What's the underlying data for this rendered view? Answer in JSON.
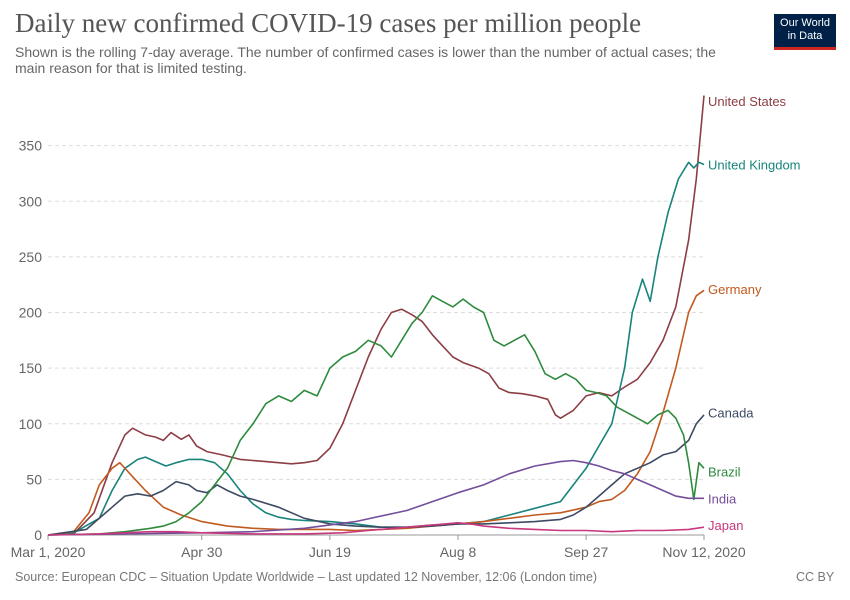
{
  "header": {
    "title": "Daily new confirmed COVID-19 cases per million people",
    "subtitle": "Shown is the rolling 7-day average. The number of confirmed cases is lower than the number of actual cases; the main reason for that is limited testing.",
    "logo_line1": "Our World",
    "logo_line2": "in Data"
  },
  "footer": {
    "source": "Source: European CDC – Situation Update Worldwide – Last updated 12 November, 12:06 (London time)",
    "license": "CC BY"
  },
  "chart_data": {
    "type": "line",
    "title": "Daily new confirmed COVID-19 cases per million people",
    "xlabel": "",
    "ylabel": "",
    "x_range": [
      0,
      256
    ],
    "ylim": [
      0,
      400
    ],
    "y_ticks": [
      0,
      50,
      100,
      150,
      200,
      250,
      300,
      350
    ],
    "x_ticks": [
      {
        "day": 0,
        "label": "Mar 1, 2020"
      },
      {
        "day": 60,
        "label": "Apr 30"
      },
      {
        "day": 110,
        "label": "Jun 19"
      },
      {
        "day": 160,
        "label": "Aug 8"
      },
      {
        "day": 210,
        "label": "Sep 27"
      },
      {
        "day": 256,
        "label": "Nov 12, 2020"
      }
    ],
    "grid": true,
    "series": [
      {
        "name": "United States",
        "color": "#8c3e44",
        "points": [
          [
            0,
            0
          ],
          [
            10,
            1
          ],
          [
            18,
            20
          ],
          [
            25,
            65
          ],
          [
            30,
            90
          ],
          [
            33,
            96
          ],
          [
            38,
            90
          ],
          [
            42,
            88
          ],
          [
            45,
            85
          ],
          [
            48,
            92
          ],
          [
            52,
            86
          ],
          [
            55,
            90
          ],
          [
            58,
            80
          ],
          [
            62,
            75
          ],
          [
            68,
            72
          ],
          [
            75,
            68
          ],
          [
            80,
            67
          ],
          [
            85,
            66
          ],
          [
            90,
            65
          ],
          [
            95,
            64
          ],
          [
            100,
            65
          ],
          [
            105,
            67
          ],
          [
            110,
            78
          ],
          [
            115,
            100
          ],
          [
            120,
            130
          ],
          [
            125,
            160
          ],
          [
            130,
            185
          ],
          [
            134,
            200
          ],
          [
            138,
            203
          ],
          [
            142,
            198
          ],
          [
            146,
            192
          ],
          [
            150,
            180
          ],
          [
            154,
            170
          ],
          [
            158,
            160
          ],
          [
            162,
            155
          ],
          [
            168,
            150
          ],
          [
            172,
            145
          ],
          [
            176,
            132
          ],
          [
            180,
            128
          ],
          [
            185,
            127
          ],
          [
            190,
            125
          ],
          [
            195,
            122
          ],
          [
            198,
            108
          ],
          [
            200,
            105
          ],
          [
            205,
            112
          ],
          [
            210,
            125
          ],
          [
            215,
            128
          ],
          [
            220,
            125
          ],
          [
            225,
            133
          ],
          [
            230,
            140
          ],
          [
            235,
            155
          ],
          [
            240,
            175
          ],
          [
            245,
            205
          ],
          [
            250,
            265
          ],
          [
            253,
            320
          ],
          [
            256,
            395
          ]
        ]
      },
      {
        "name": "United Kingdom",
        "color": "#18847c",
        "points": [
          [
            0,
            0
          ],
          [
            10,
            2
          ],
          [
            20,
            15
          ],
          [
            25,
            40
          ],
          [
            30,
            60
          ],
          [
            35,
            68
          ],
          [
            38,
            70
          ],
          [
            42,
            66
          ],
          [
            46,
            62
          ],
          [
            50,
            65
          ],
          [
            55,
            68
          ],
          [
            60,
            68
          ],
          [
            65,
            65
          ],
          [
            70,
            55
          ],
          [
            75,
            40
          ],
          [
            80,
            28
          ],
          [
            85,
            20
          ],
          [
            90,
            16
          ],
          [
            95,
            14
          ],
          [
            100,
            13
          ],
          [
            110,
            12
          ],
          [
            120,
            10
          ],
          [
            130,
            7
          ],
          [
            140,
            7
          ],
          [
            150,
            9
          ],
          [
            160,
            10
          ],
          [
            170,
            12
          ],
          [
            180,
            18
          ],
          [
            190,
            24
          ],
          [
            200,
            30
          ],
          [
            210,
            60
          ],
          [
            215,
            80
          ],
          [
            220,
            100
          ],
          [
            225,
            150
          ],
          [
            228,
            200
          ],
          [
            232,
            230
          ],
          [
            235,
            210
          ],
          [
            238,
            250
          ],
          [
            242,
            290
          ],
          [
            246,
            320
          ],
          [
            250,
            335
          ],
          [
            252,
            330
          ],
          [
            254,
            335
          ],
          [
            256,
            333
          ]
        ]
      },
      {
        "name": "Germany",
        "color": "#c15a20",
        "points": [
          [
            0,
            0
          ],
          [
            10,
            3
          ],
          [
            16,
            20
          ],
          [
            20,
            45
          ],
          [
            25,
            60
          ],
          [
            28,
            65
          ],
          [
            32,
            55
          ],
          [
            38,
            40
          ],
          [
            45,
            25
          ],
          [
            52,
            18
          ],
          [
            60,
            12
          ],
          [
            70,
            8
          ],
          [
            80,
            6
          ],
          [
            90,
            5
          ],
          [
            100,
            5
          ],
          [
            110,
            5
          ],
          [
            120,
            4
          ],
          [
            130,
            5
          ],
          [
            140,
            6
          ],
          [
            150,
            8
          ],
          [
            160,
            10
          ],
          [
            170,
            12
          ],
          [
            180,
            15
          ],
          [
            190,
            18
          ],
          [
            200,
            20
          ],
          [
            210,
            25
          ],
          [
            215,
            30
          ],
          [
            220,
            32
          ],
          [
            225,
            40
          ],
          [
            230,
            55
          ],
          [
            235,
            75
          ],
          [
            240,
            110
          ],
          [
            245,
            150
          ],
          [
            250,
            200
          ],
          [
            253,
            215
          ],
          [
            256,
            220
          ]
        ]
      },
      {
        "name": "Canada",
        "color": "#3d4a63",
        "points": [
          [
            0,
            0
          ],
          [
            15,
            5
          ],
          [
            25,
            25
          ],
          [
            30,
            35
          ],
          [
            35,
            37
          ],
          [
            40,
            35
          ],
          [
            45,
            40
          ],
          [
            50,
            48
          ],
          [
            55,
            45
          ],
          [
            58,
            40
          ],
          [
            62,
            38
          ],
          [
            66,
            45
          ],
          [
            70,
            40
          ],
          [
            75,
            35
          ],
          [
            80,
            32
          ],
          [
            90,
            25
          ],
          [
            100,
            15
          ],
          [
            110,
            10
          ],
          [
            120,
            8
          ],
          [
            130,
            7
          ],
          [
            140,
            7
          ],
          [
            150,
            8
          ],
          [
            160,
            10
          ],
          [
            170,
            10
          ],
          [
            180,
            11
          ],
          [
            190,
            12
          ],
          [
            200,
            14
          ],
          [
            205,
            18
          ],
          [
            210,
            25
          ],
          [
            215,
            35
          ],
          [
            220,
            45
          ],
          [
            225,
            55
          ],
          [
            230,
            60
          ],
          [
            235,
            65
          ],
          [
            240,
            72
          ],
          [
            245,
            75
          ],
          [
            250,
            85
          ],
          [
            253,
            100
          ],
          [
            256,
            108
          ]
        ]
      },
      {
        "name": "Brazil",
        "color": "#2e8b3e",
        "points": [
          [
            0,
            0
          ],
          [
            20,
            1
          ],
          [
            30,
            3
          ],
          [
            40,
            6
          ],
          [
            45,
            8
          ],
          [
            50,
            12
          ],
          [
            55,
            20
          ],
          [
            60,
            30
          ],
          [
            65,
            45
          ],
          [
            70,
            60
          ],
          [
            75,
            85
          ],
          [
            80,
            100
          ],
          [
            85,
            118
          ],
          [
            90,
            125
          ],
          [
            95,
            120
          ],
          [
            100,
            130
          ],
          [
            105,
            125
          ],
          [
            110,
            150
          ],
          [
            115,
            160
          ],
          [
            120,
            165
          ],
          [
            125,
            175
          ],
          [
            130,
            170
          ],
          [
            134,
            160
          ],
          [
            138,
            175
          ],
          [
            142,
            190
          ],
          [
            146,
            200
          ],
          [
            150,
            215
          ],
          [
            154,
            210
          ],
          [
            158,
            205
          ],
          [
            162,
            212
          ],
          [
            166,
            205
          ],
          [
            170,
            200
          ],
          [
            174,
            175
          ],
          [
            178,
            170
          ],
          [
            182,
            175
          ],
          [
            186,
            180
          ],
          [
            190,
            165
          ],
          [
            194,
            145
          ],
          [
            198,
            140
          ],
          [
            202,
            145
          ],
          [
            206,
            140
          ],
          [
            210,
            130
          ],
          [
            214,
            128
          ],
          [
            218,
            125
          ],
          [
            222,
            115
          ],
          [
            226,
            110
          ],
          [
            230,
            105
          ],
          [
            234,
            100
          ],
          [
            238,
            108
          ],
          [
            242,
            112
          ],
          [
            245,
            105
          ],
          [
            248,
            90
          ],
          [
            250,
            65
          ],
          [
            252,
            32
          ],
          [
            254,
            65
          ],
          [
            256,
            60
          ]
        ]
      },
      {
        "name": "India",
        "color": "#744e9b",
        "points": [
          [
            0,
            0
          ],
          [
            30,
            1
          ],
          [
            60,
            2
          ],
          [
            80,
            3
          ],
          [
            100,
            6
          ],
          [
            120,
            12
          ],
          [
            140,
            22
          ],
          [
            150,
            30
          ],
          [
            160,
            38
          ],
          [
            170,
            45
          ],
          [
            180,
            55
          ],
          [
            190,
            62
          ],
          [
            200,
            66
          ],
          [
            205,
            67
          ],
          [
            210,
            65
          ],
          [
            215,
            62
          ],
          [
            220,
            58
          ],
          [
            225,
            55
          ],
          [
            230,
            50
          ],
          [
            235,
            45
          ],
          [
            240,
            40
          ],
          [
            245,
            35
          ],
          [
            250,
            33
          ],
          [
            256,
            33
          ]
        ]
      },
      {
        "name": "Japan",
        "color": "#c8387d",
        "points": [
          [
            0,
            0
          ],
          [
            20,
            1
          ],
          [
            30,
            2
          ],
          [
            40,
            3
          ],
          [
            50,
            3
          ],
          [
            60,
            2
          ],
          [
            80,
            1
          ],
          [
            100,
            1
          ],
          [
            115,
            2
          ],
          [
            125,
            4
          ],
          [
            135,
            6
          ],
          [
            145,
            8
          ],
          [
            155,
            10
          ],
          [
            160,
            11
          ],
          [
            165,
            10
          ],
          [
            170,
            8
          ],
          [
            180,
            6
          ],
          [
            190,
            5
          ],
          [
            200,
            4
          ],
          [
            210,
            4
          ],
          [
            220,
            3
          ],
          [
            230,
            4
          ],
          [
            240,
            4
          ],
          [
            250,
            5
          ],
          [
            256,
            7
          ]
        ]
      }
    ],
    "end_labels": [
      {
        "name": "United States",
        "color": "#8c3e44",
        "value": 390
      },
      {
        "name": "United Kingdom",
        "color": "#18847c",
        "value": 333
      },
      {
        "name": "Germany",
        "color": "#c15a20",
        "value": 221
      },
      {
        "name": "Canada",
        "color": "#3d4a63",
        "value": 110
      },
      {
        "name": "Brazil",
        "color": "#2e8b3e",
        "value": 57
      },
      {
        "name": "India",
        "color": "#744e9b",
        "value": 33
      },
      {
        "name": "Japan",
        "color": "#c8387d",
        "value": 9
      }
    ]
  }
}
